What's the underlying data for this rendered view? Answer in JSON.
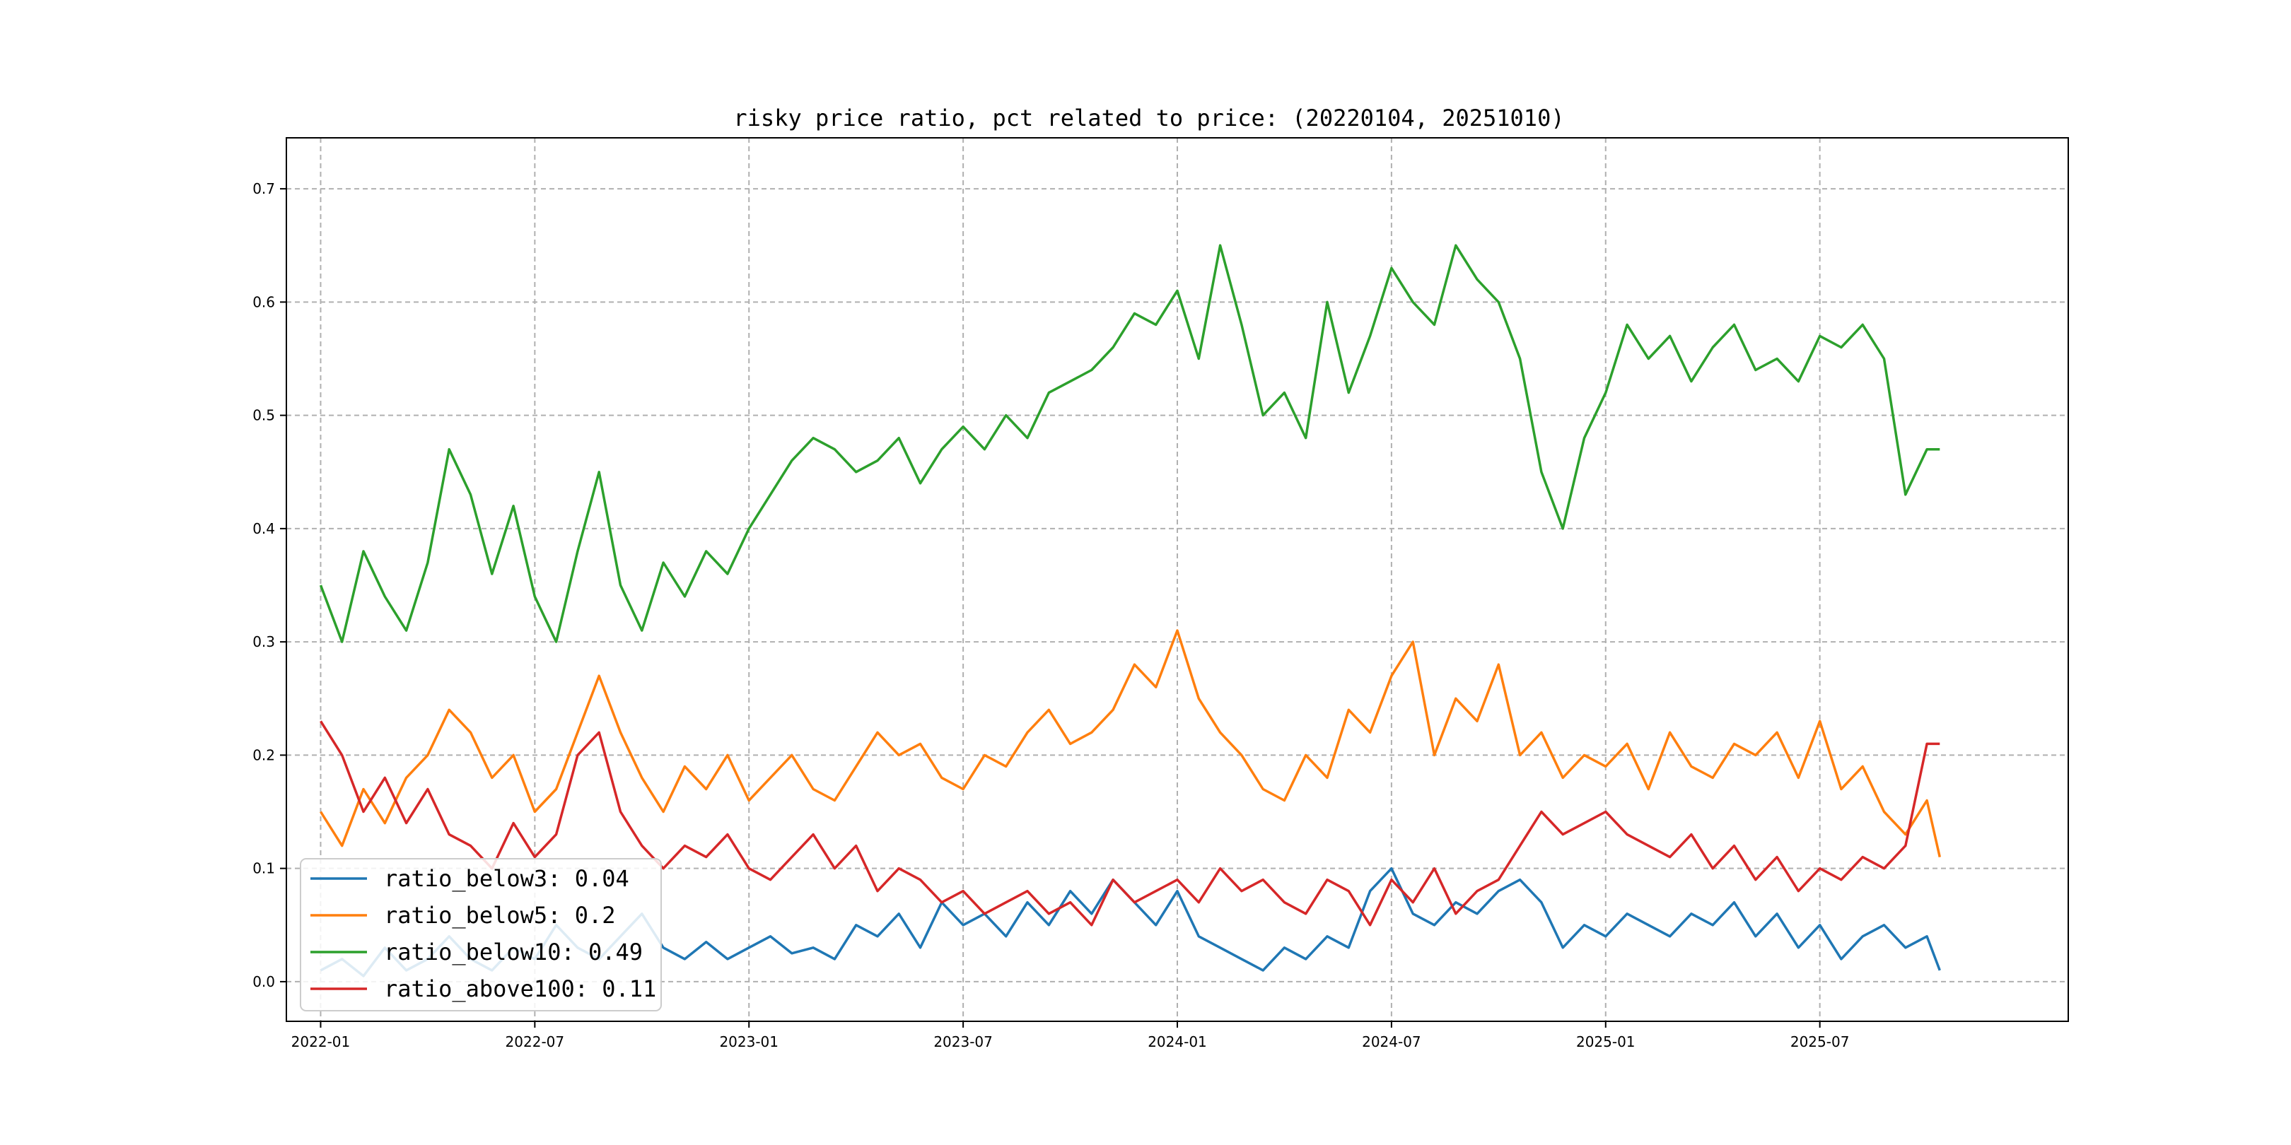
{
  "chart_data": {
    "type": "line",
    "title": "risky price ratio, pct related to price: (20220104, 20251010)",
    "xlabel": "",
    "ylabel": "",
    "x_range": [
      "2022-01-04",
      "2025-10-10"
    ],
    "xlim": [
      2021.92,
      2026.08
    ],
    "ylim": [
      -0.035,
      0.745
    ],
    "x_ticks": [
      {
        "label": "2022-01",
        "value": 2022.0
      },
      {
        "label": "2022-07",
        "value": 2022.5
      },
      {
        "label": "2023-01",
        "value": 2023.0
      },
      {
        "label": "2023-07",
        "value": 2023.5
      },
      {
        "label": "2024-01",
        "value": 2024.0
      },
      {
        "label": "2024-07",
        "value": 2024.5
      },
      {
        "label": "2025-01",
        "value": 2025.0
      },
      {
        "label": "2025-07",
        "value": 2025.5
      }
    ],
    "y_ticks": [
      {
        "label": "0.0",
        "value": 0.0
      },
      {
        "label": "0.1",
        "value": 0.1
      },
      {
        "label": "0.2",
        "value": 0.2
      },
      {
        "label": "0.3",
        "value": 0.3
      },
      {
        "label": "0.4",
        "value": 0.4
      },
      {
        "label": "0.5",
        "value": 0.5
      },
      {
        "label": "0.6",
        "value": 0.6
      },
      {
        "label": "0.7",
        "value": 0.7
      }
    ],
    "grid": true,
    "legend_position": "lower-left",
    "series": [
      {
        "name": "ratio_below3",
        "legend": "ratio_below3: 0.04",
        "color": "#1f77b4",
        "x": [
          2022.0,
          2022.05,
          2022.1,
          2022.15,
          2022.2,
          2022.25,
          2022.3,
          2022.35,
          2022.4,
          2022.45,
          2022.5,
          2022.55,
          2022.6,
          2022.65,
          2022.7,
          2022.75,
          2022.8,
          2022.85,
          2022.9,
          2022.95,
          2023.0,
          2023.05,
          2023.1,
          2023.15,
          2023.2,
          2023.25,
          2023.3,
          2023.35,
          2023.4,
          2023.45,
          2023.5,
          2023.55,
          2023.6,
          2023.65,
          2023.7,
          2023.75,
          2023.8,
          2023.85,
          2023.9,
          2023.95,
          2024.0,
          2024.05,
          2024.1,
          2024.15,
          2024.2,
          2024.25,
          2024.3,
          2024.35,
          2024.4,
          2024.45,
          2024.5,
          2024.55,
          2024.6,
          2024.65,
          2024.7,
          2024.75,
          2024.8,
          2024.85,
          2024.9,
          2024.95,
          2025.0,
          2025.05,
          2025.1,
          2025.15,
          2025.2,
          2025.25,
          2025.3,
          2025.35,
          2025.4,
          2025.45,
          2025.5,
          2025.55,
          2025.6,
          2025.65,
          2025.7,
          2025.75,
          2025.78
        ],
        "values": [
          0.01,
          0.02,
          0.005,
          0.03,
          0.01,
          0.02,
          0.04,
          0.02,
          0.01,
          0.03,
          0.02,
          0.05,
          0.03,
          0.02,
          0.04,
          0.06,
          0.03,
          0.02,
          0.035,
          0.02,
          0.03,
          0.04,
          0.025,
          0.03,
          0.02,
          0.05,
          0.04,
          0.06,
          0.03,
          0.07,
          0.05,
          0.06,
          0.04,
          0.07,
          0.05,
          0.08,
          0.06,
          0.09,
          0.07,
          0.05,
          0.08,
          0.04,
          0.03,
          0.02,
          0.01,
          0.03,
          0.02,
          0.04,
          0.03,
          0.08,
          0.1,
          0.06,
          0.05,
          0.07,
          0.06,
          0.08,
          0.09,
          0.07,
          0.03,
          0.05,
          0.04,
          0.06,
          0.05,
          0.04,
          0.06,
          0.05,
          0.07,
          0.04,
          0.06,
          0.03,
          0.05,
          0.02,
          0.04,
          0.05,
          0.03,
          0.04,
          0.01
        ]
      },
      {
        "name": "ratio_below5",
        "legend": "ratio_below5: 0.2",
        "color": "#ff7f0e",
        "x": [
          2022.0,
          2022.05,
          2022.1,
          2022.15,
          2022.2,
          2022.25,
          2022.3,
          2022.35,
          2022.4,
          2022.45,
          2022.5,
          2022.55,
          2022.6,
          2022.65,
          2022.7,
          2022.75,
          2022.8,
          2022.85,
          2022.9,
          2022.95,
          2023.0,
          2023.05,
          2023.1,
          2023.15,
          2023.2,
          2023.25,
          2023.3,
          2023.35,
          2023.4,
          2023.45,
          2023.5,
          2023.55,
          2023.6,
          2023.65,
          2023.7,
          2023.75,
          2023.8,
          2023.85,
          2023.9,
          2023.95,
          2024.0,
          2024.05,
          2024.1,
          2024.15,
          2024.2,
          2024.25,
          2024.3,
          2024.35,
          2024.4,
          2024.45,
          2024.5,
          2024.55,
          2024.6,
          2024.65,
          2024.7,
          2024.75,
          2024.8,
          2024.85,
          2024.9,
          2024.95,
          2025.0,
          2025.05,
          2025.1,
          2025.15,
          2025.2,
          2025.25,
          2025.3,
          2025.35,
          2025.4,
          2025.45,
          2025.5,
          2025.55,
          2025.6,
          2025.65,
          2025.7,
          2025.75,
          2025.78
        ],
        "values": [
          0.15,
          0.12,
          0.17,
          0.14,
          0.18,
          0.2,
          0.24,
          0.22,
          0.18,
          0.2,
          0.15,
          0.17,
          0.22,
          0.27,
          0.22,
          0.18,
          0.15,
          0.19,
          0.17,
          0.2,
          0.16,
          0.18,
          0.2,
          0.17,
          0.16,
          0.19,
          0.22,
          0.2,
          0.21,
          0.18,
          0.17,
          0.2,
          0.19,
          0.22,
          0.24,
          0.21,
          0.22,
          0.24,
          0.28,
          0.26,
          0.31,
          0.25,
          0.22,
          0.2,
          0.17,
          0.16,
          0.2,
          0.18,
          0.24,
          0.22,
          0.27,
          0.3,
          0.2,
          0.25,
          0.23,
          0.28,
          0.2,
          0.22,
          0.18,
          0.2,
          0.19,
          0.21,
          0.17,
          0.22,
          0.19,
          0.18,
          0.21,
          0.2,
          0.22,
          0.18,
          0.23,
          0.17,
          0.19,
          0.15,
          0.13,
          0.16,
          0.11
        ]
      },
      {
        "name": "ratio_below10",
        "legend": "ratio_below10: 0.49",
        "color": "#2ca02c",
        "x": [
          2022.0,
          2022.05,
          2022.1,
          2022.15,
          2022.2,
          2022.25,
          2022.3,
          2022.35,
          2022.4,
          2022.45,
          2022.5,
          2022.55,
          2022.6,
          2022.65,
          2022.7,
          2022.75,
          2022.8,
          2022.85,
          2022.9,
          2022.95,
          2023.0,
          2023.05,
          2023.1,
          2023.15,
          2023.2,
          2023.25,
          2023.3,
          2023.35,
          2023.4,
          2023.45,
          2023.5,
          2023.55,
          2023.6,
          2023.65,
          2023.7,
          2023.75,
          2023.8,
          2023.85,
          2023.9,
          2023.95,
          2024.0,
          2024.05,
          2024.1,
          2024.15,
          2024.2,
          2024.25,
          2024.3,
          2024.35,
          2024.4,
          2024.45,
          2024.5,
          2024.55,
          2024.6,
          2024.65,
          2024.7,
          2024.75,
          2024.8,
          2024.85,
          2024.9,
          2024.95,
          2025.0,
          2025.05,
          2025.1,
          2025.15,
          2025.2,
          2025.25,
          2025.3,
          2025.35,
          2025.4,
          2025.45,
          2025.5,
          2025.55,
          2025.6,
          2025.65,
          2025.7,
          2025.75,
          2025.78
        ],
        "values": [
          0.35,
          0.3,
          0.38,
          0.34,
          0.31,
          0.37,
          0.47,
          0.43,
          0.36,
          0.42,
          0.34,
          0.3,
          0.38,
          0.45,
          0.35,
          0.31,
          0.37,
          0.34,
          0.38,
          0.36,
          0.4,
          0.43,
          0.46,
          0.48,
          0.47,
          0.45,
          0.46,
          0.48,
          0.44,
          0.47,
          0.49,
          0.47,
          0.5,
          0.48,
          0.52,
          0.53,
          0.54,
          0.56,
          0.59,
          0.58,
          0.61,
          0.55,
          0.65,
          0.58,
          0.5,
          0.52,
          0.48,
          0.6,
          0.52,
          0.57,
          0.63,
          0.6,
          0.58,
          0.65,
          0.62,
          0.6,
          0.55,
          0.45,
          0.4,
          0.48,
          0.52,
          0.58,
          0.55,
          0.57,
          0.53,
          0.56,
          0.58,
          0.54,
          0.55,
          0.53,
          0.57,
          0.56,
          0.58,
          0.55,
          0.43,
          0.47,
          0.47
        ]
      },
      {
        "name": "ratio_above100",
        "legend": "ratio_above100: 0.11",
        "color": "#d62728",
        "x": [
          2022.0,
          2022.05,
          2022.1,
          2022.15,
          2022.2,
          2022.25,
          2022.3,
          2022.35,
          2022.4,
          2022.45,
          2022.5,
          2022.55,
          2022.6,
          2022.65,
          2022.7,
          2022.75,
          2022.8,
          2022.85,
          2022.9,
          2022.95,
          2023.0,
          2023.05,
          2023.1,
          2023.15,
          2023.2,
          2023.25,
          2023.3,
          2023.35,
          2023.4,
          2023.45,
          2023.5,
          2023.55,
          2023.6,
          2023.65,
          2023.7,
          2023.75,
          2023.8,
          2023.85,
          2023.9,
          2023.95,
          2024.0,
          2024.05,
          2024.1,
          2024.15,
          2024.2,
          2024.25,
          2024.3,
          2024.35,
          2024.4,
          2024.45,
          2024.5,
          2024.55,
          2024.6,
          2024.65,
          2024.7,
          2024.75,
          2024.8,
          2024.85,
          2024.9,
          2024.95,
          2025.0,
          2025.05,
          2025.1,
          2025.15,
          2025.2,
          2025.25,
          2025.3,
          2025.35,
          2025.4,
          2025.45,
          2025.5,
          2025.55,
          2025.6,
          2025.65,
          2025.7,
          2025.75,
          2025.78
        ],
        "values": [
          0.23,
          0.2,
          0.15,
          0.18,
          0.14,
          0.17,
          0.13,
          0.12,
          0.1,
          0.14,
          0.11,
          0.13,
          0.2,
          0.22,
          0.15,
          0.12,
          0.1,
          0.12,
          0.11,
          0.13,
          0.1,
          0.09,
          0.11,
          0.13,
          0.1,
          0.12,
          0.08,
          0.1,
          0.09,
          0.07,
          0.08,
          0.06,
          0.07,
          0.08,
          0.06,
          0.07,
          0.05,
          0.09,
          0.07,
          0.08,
          0.09,
          0.07,
          0.1,
          0.08,
          0.09,
          0.07,
          0.06,
          0.09,
          0.08,
          0.05,
          0.09,
          0.07,
          0.1,
          0.06,
          0.08,
          0.09,
          0.12,
          0.15,
          0.13,
          0.14,
          0.15,
          0.13,
          0.12,
          0.11,
          0.13,
          0.1,
          0.12,
          0.09,
          0.11,
          0.08,
          0.1,
          0.09,
          0.11,
          0.1,
          0.12,
          0.21,
          0.21
        ]
      }
    ]
  }
}
